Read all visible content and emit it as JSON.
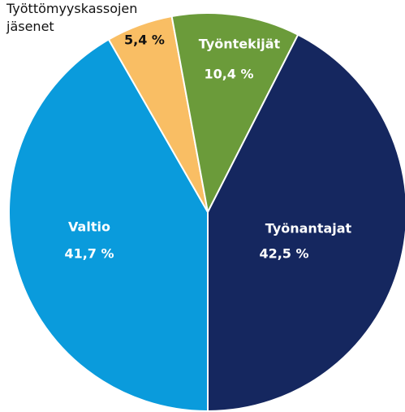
{
  "chart_data": {
    "type": "pie",
    "categories": [
      "Valtio",
      "Työttömyyskassojen jäsenet",
      "Työntekijät",
      "Työnantajat"
    ],
    "values": [
      41.7,
      5.4,
      10.4,
      42.5
    ],
    "value_labels": [
      "41,7 %",
      "5,4 %",
      "10,4 %",
      "42,5 %"
    ],
    "colors": [
      "#0a9bdc",
      "#f9be64",
      "#6b9b3a",
      "#15275f"
    ]
  }
}
